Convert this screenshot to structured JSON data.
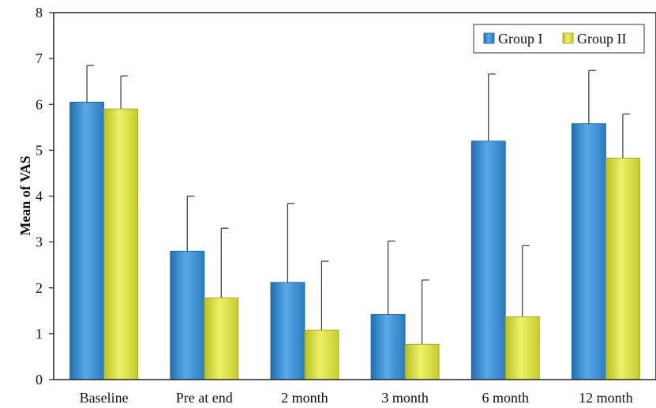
{
  "chart_data": {
    "type": "bar",
    "categories": [
      "Baseline",
      "Pre at end",
      "2 month",
      "3 month",
      "6 month",
      "12 month"
    ],
    "series": [
      {
        "name": "Group I",
        "values": [
          6.05,
          2.8,
          2.12,
          1.42,
          5.2,
          5.58
        ],
        "error": [
          0.8,
          1.2,
          1.72,
          1.6,
          1.46,
          1.16
        ],
        "color": "#3a8fd0"
      },
      {
        "name": "Group II",
        "values": [
          5.9,
          1.78,
          1.08,
          0.77,
          1.37,
          4.83
        ],
        "error": [
          0.72,
          1.52,
          1.5,
          1.4,
          1.55,
          0.96
        ],
        "color": "#d4dc3c"
      }
    ],
    "title": "",
    "xlabel": "",
    "ylabel": "Mean of VAS",
    "ylim": [
      0,
      8
    ],
    "yticks": [
      "0",
      "1",
      "2",
      "3",
      "4",
      "5",
      "6",
      "7",
      "8"
    ],
    "grid": false,
    "legend": "top-right"
  }
}
